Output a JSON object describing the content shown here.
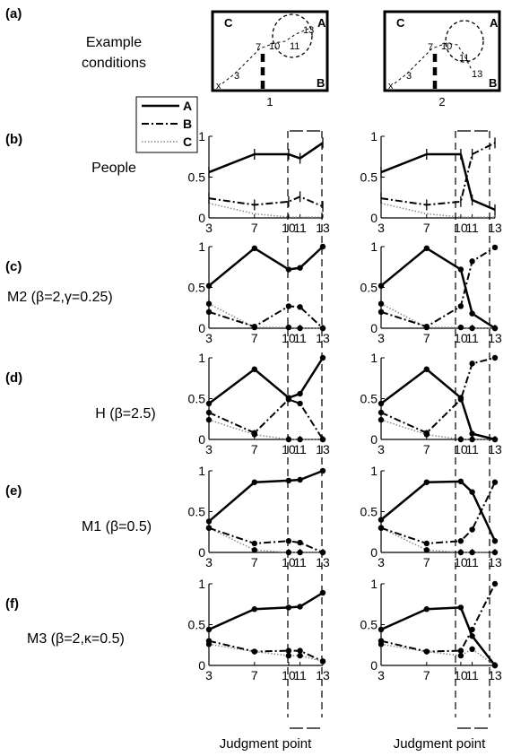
{
  "panels": {
    "a": {
      "letter": "(a)",
      "label_line1": "Example",
      "label_line2": "conditions"
    },
    "b": {
      "letter": "(b)",
      "label": "People"
    },
    "c": {
      "letter": "(c)",
      "label": "M2 (β=2,γ=0.25)"
    },
    "d": {
      "letter": "(d)",
      "label": "H (β=2.5)"
    },
    "e": {
      "letter": "(e)",
      "label": "M1 (β=0.5)"
    },
    "f": {
      "letter": "(f)",
      "label": "M3 (β=2,κ=0.5)"
    }
  },
  "legend": [
    {
      "name": "A",
      "style": "solid"
    },
    {
      "name": "B",
      "style": "dashdot"
    },
    {
      "name": "C",
      "style": "dotted"
    }
  ],
  "conditions": [
    {
      "label": "1",
      "corner_C": "C",
      "corner_A": "A",
      "corner_B": "B",
      "start": "x",
      "points": [
        {
          "label": "3"
        },
        {
          "label": "7"
        },
        {
          "label": "10"
        },
        {
          "label": "11"
        },
        {
          "label": "13"
        }
      ]
    },
    {
      "label": "2",
      "corner_C": "C",
      "corner_A": "A",
      "corner_B": "B",
      "start": "x",
      "points": [
        {
          "label": "3"
        },
        {
          "label": "7"
        },
        {
          "label": "10"
        },
        {
          "label": "11"
        },
        {
          "label": "13"
        }
      ]
    }
  ],
  "xlabel": "Judgment point",
  "chart_data": {
    "type": "line",
    "x": [
      3,
      7,
      10,
      11,
      13
    ],
    "xtick_labels": [
      "3",
      "7",
      "10",
      "11",
      "13"
    ],
    "ylim": [
      0,
      1
    ],
    "yticks": [
      "0",
      "0.5",
      "1"
    ],
    "xlabel": "Judgment point",
    "rows": [
      {
        "row": "b",
        "columns": [
          {
            "condition": "1",
            "series": [
              {
                "name": "A",
                "values": [
                  0.56,
                  0.78,
                  0.78,
                  0.73,
                  0.92
                ]
              },
              {
                "name": "B",
                "values": [
                  0.24,
                  0.16,
                  0.2,
                  0.26,
                  0.14
                ]
              },
              {
                "name": "C",
                "values": [
                  0.18,
                  0.05,
                  0.01,
                  0.01,
                  0.01
                ]
              }
            ]
          },
          {
            "condition": "2",
            "series": [
              {
                "name": "A",
                "values": [
                  0.56,
                  0.78,
                  0.78,
                  0.22,
                  0.1
                ]
              },
              {
                "name": "B",
                "values": [
                  0.24,
                  0.16,
                  0.2,
                  0.78,
                  0.92
                ]
              },
              {
                "name": "C",
                "values": [
                  0.18,
                  0.05,
                  0.01,
                  0.01,
                  0.01
                ]
              }
            ]
          }
        ]
      },
      {
        "row": "c",
        "columns": [
          {
            "condition": "1",
            "series": [
              {
                "name": "A",
                "values": [
                  0.52,
                  0.98,
                  0.72,
                  0.74,
                  1.0
                ]
              },
              {
                "name": "B",
                "values": [
                  0.2,
                  0.02,
                  0.27,
                  0.26,
                  0.0
                ]
              },
              {
                "name": "C",
                "values": [
                  0.3,
                  0.01,
                  0.01,
                  0.0,
                  0.0
                ]
              }
            ]
          },
          {
            "condition": "2",
            "series": [
              {
                "name": "A",
                "values": [
                  0.52,
                  0.98,
                  0.72,
                  0.18,
                  0.0
                ]
              },
              {
                "name": "B",
                "values": [
                  0.2,
                  0.02,
                  0.27,
                  0.82,
                  0.99
                ]
              },
              {
                "name": "C",
                "values": [
                  0.3,
                  0.01,
                  0.01,
                  0.0,
                  0.0
                ]
              }
            ]
          }
        ]
      },
      {
        "row": "d",
        "columns": [
          {
            "condition": "1",
            "series": [
              {
                "name": "A",
                "values": [
                  0.44,
                  0.86,
                  0.51,
                  0.56,
                  1.0
                ]
              },
              {
                "name": "B",
                "values": [
                  0.33,
                  0.08,
                  0.49,
                  0.44,
                  0.0
                ]
              },
              {
                "name": "C",
                "values": [
                  0.24,
                  0.06,
                  0.0,
                  0.0,
                  0.0
                ]
              }
            ]
          },
          {
            "condition": "2",
            "series": [
              {
                "name": "A",
                "values": [
                  0.44,
                  0.86,
                  0.51,
                  0.07,
                  0.0
                ]
              },
              {
                "name": "B",
                "values": [
                  0.33,
                  0.08,
                  0.49,
                  0.93,
                  1.0
                ]
              },
              {
                "name": "C",
                "values": [
                  0.24,
                  0.06,
                  0.0,
                  0.0,
                  0.0
                ]
              }
            ]
          }
        ]
      },
      {
        "row": "e",
        "columns": [
          {
            "condition": "1",
            "series": [
              {
                "name": "A",
                "values": [
                  0.38,
                  0.86,
                  0.88,
                  0.89,
                  1.0
                ]
              },
              {
                "name": "B",
                "values": [
                  0.3,
                  0.11,
                  0.14,
                  0.12,
                  0.0
                ]
              },
              {
                "name": "C",
                "values": [
                  0.3,
                  0.03,
                  0.0,
                  0.0,
                  0.0
                ]
              }
            ]
          },
          {
            "condition": "2",
            "series": [
              {
                "name": "A",
                "values": [
                  0.4,
                  0.86,
                  0.87,
                  0.74,
                  0.14
                ]
              },
              {
                "name": "B",
                "values": [
                  0.3,
                  0.11,
                  0.14,
                  0.28,
                  0.86
                ]
              },
              {
                "name": "C",
                "values": [
                  0.3,
                  0.03,
                  0.0,
                  0.0,
                  0.0
                ]
              }
            ]
          }
        ]
      },
      {
        "row": "f",
        "columns": [
          {
            "condition": "1",
            "series": [
              {
                "name": "A",
                "values": [
                  0.44,
                  0.69,
                  0.71,
                  0.72,
                  0.89
                ]
              },
              {
                "name": "B",
                "values": [
                  0.3,
                  0.17,
                  0.18,
                  0.18,
                  0.05
                ]
              },
              {
                "name": "C",
                "values": [
                  0.26,
                  0.17,
                  0.12,
                  0.12,
                  0.05
                ]
              }
            ]
          },
          {
            "condition": "2",
            "series": [
              {
                "name": "A",
                "values": [
                  0.44,
                  0.69,
                  0.71,
                  0.36,
                  0.0
                ]
              },
              {
                "name": "B",
                "values": [
                  0.3,
                  0.17,
                  0.18,
                  0.44,
                  1.0
                ]
              },
              {
                "name": "C",
                "values": [
                  0.26,
                  0.17,
                  0.12,
                  0.2,
                  0.0
                ]
              }
            ]
          }
        ]
      }
    ]
  }
}
